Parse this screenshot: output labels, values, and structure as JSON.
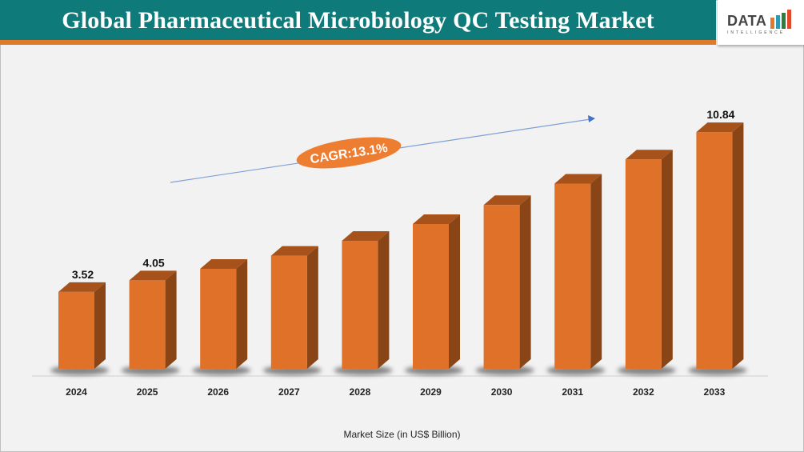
{
  "header": {
    "title": "Global Pharmaceutical Microbiology QC Testing Market"
  },
  "logo": {
    "text": "DATA",
    "subtext": "INTELLIGENCE"
  },
  "colors": {
    "header_bg": "#0e7b7a",
    "accent": "#e07a2a",
    "bar_front": "#e07128",
    "bar_top": "#a8521b",
    "bar_side": "#8a4516",
    "arrow": "#4472c4"
  },
  "chart_data": {
    "type": "bar",
    "title": "Global Pharmaceutical Microbiology QC Testing Market",
    "xlabel": "Market Size (in US$ Billion)",
    "ylabel": "",
    "categories": [
      "2024",
      "2025",
      "2026",
      "2027",
      "2028",
      "2029",
      "2030",
      "2031",
      "2032",
      "2033"
    ],
    "values": [
      3.52,
      4.05,
      4.58,
      5.18,
      5.86,
      6.63,
      7.5,
      8.48,
      9.59,
      10.84
    ],
    "data_labels": {
      "0": "3.52",
      "1": "4.05",
      "9": "10.84"
    },
    "ylim": [
      0,
      12
    ],
    "grid": false,
    "style": "3d-column",
    "annotation": "CAGR:13.1%"
  }
}
